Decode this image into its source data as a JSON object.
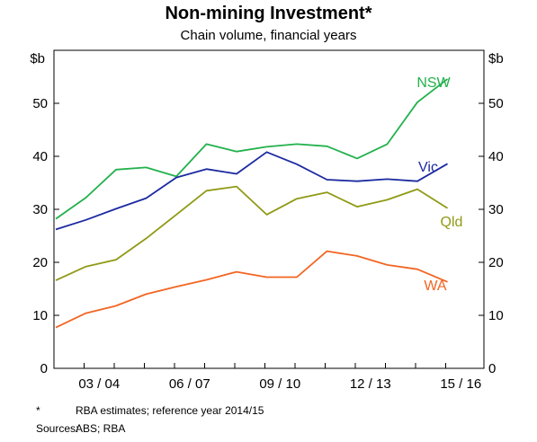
{
  "chart_data": {
    "type": "line",
    "title": "Non-mining Investment*",
    "subtitle": "Chain volume, financial years",
    "y_unit_left": "$b",
    "y_unit_right": "$b",
    "ylim": [
      0,
      60
    ],
    "yticks": [
      0,
      10,
      20,
      30,
      40,
      50
    ],
    "x": [
      "2002/03",
      "2003/04",
      "2004/05",
      "2005/06",
      "2006/07",
      "2007/08",
      "2008/09",
      "2009/10",
      "2010/11",
      "2011/12",
      "2012/13",
      "2013/14",
      "2014/15",
      "2015/16"
    ],
    "x_tick_labels": [
      "03 / 04",
      "06 / 07",
      "09 / 10",
      "12 / 13",
      "15 / 16"
    ],
    "grid": false,
    "series": [
      {
        "name": "NSW",
        "color": "#22b14c",
        "values": [
          28.2,
          32.2,
          37.5,
          37.9,
          36.2,
          42.3,
          40.9,
          41.8,
          42.3,
          41.9,
          39.6,
          42.3,
          50.2,
          54.6
        ]
      },
      {
        "name": "Vic",
        "color": "#1c2aa0",
        "values": [
          26.2,
          28.0,
          30.1,
          32.1,
          36.0,
          37.6,
          36.7,
          40.8,
          38.5,
          35.6,
          35.3,
          35.7,
          35.3,
          38.6
        ]
      },
      {
        "name": "Qld",
        "color": "#8f9a15",
        "values": [
          16.6,
          19.2,
          20.5,
          24.5,
          29.0,
          33.5,
          34.3,
          29.0,
          32.0,
          33.2,
          30.5,
          31.8,
          33.8,
          30.2
        ]
      },
      {
        "name": "WA",
        "color": "#f26522",
        "values": [
          7.7,
          10.4,
          11.8,
          14.0,
          15.4,
          16.7,
          18.2,
          17.2,
          17.2,
          22.1,
          21.2,
          19.5,
          18.7,
          16.3
        ]
      }
    ]
  },
  "notes": [
    {
      "key": "*",
      "text": "RBA estimates; reference year 2014/15"
    },
    {
      "key": "Sources:",
      "text": "ABS; RBA"
    }
  ]
}
